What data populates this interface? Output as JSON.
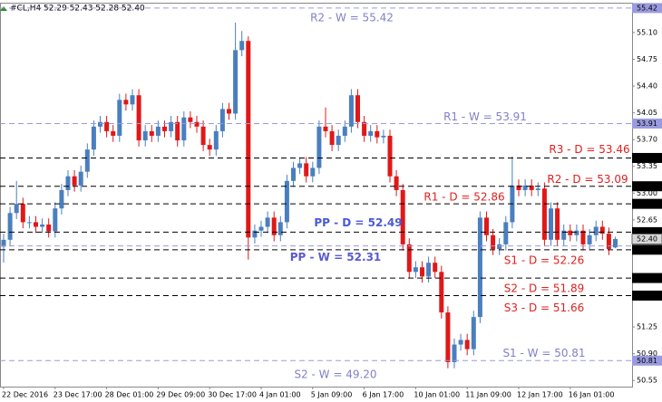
{
  "chart_data": {
    "type": "candlestick",
    "header": "#CL,H4  52.29 52.43 52.28 52.40",
    "up_color": "#4a7fbf",
    "down_color": "#e01818",
    "ylim": [
      50.47,
      55.49
    ],
    "yticks": [
      50.55,
      {
        "value": 50.9,
        "label": "50.90"
      },
      51.25,
      52.65,
      {
        "value": 53,
        "label": "53.00"
      },
      53.35,
      {
        "value": 53.7,
        "label": "53.70"
      },
      54.05,
      {
        "value": 54.4,
        "label": "54.40"
      },
      54.75,
      {
        "value": 55.1,
        "label": "55.10"
      }
    ],
    "last_price": {
      "value": 52.4,
      "label": "52.40"
    },
    "x": [
      "22 Dec 2016",
      null,
      null,
      null,
      null,
      null,
      null,
      null,
      "23 Dec 17:00",
      null,
      null,
      null,
      null,
      null,
      null,
      null,
      "28 Dec 01:00",
      null,
      null,
      null,
      null,
      null,
      null,
      null,
      "29 Dec 09:00",
      null,
      null,
      null,
      null,
      null,
      null,
      null,
      "30 Dec 17:00",
      null,
      null,
      null,
      null,
      null,
      null,
      null,
      "4 Jan 01:00",
      null,
      null,
      null,
      null,
      null,
      null,
      null,
      "5 Jan 09:00",
      null,
      null,
      null,
      null,
      null,
      null,
      null,
      "6 Jan 17:00",
      null,
      null,
      null,
      null,
      null,
      null,
      null,
      "10 Jan 01:00",
      null,
      null,
      null,
      null,
      null,
      null,
      null,
      "11 Jan 09:00",
      null,
      null,
      null,
      null,
      null,
      null,
      null,
      "12 Jan 17:00",
      null,
      null,
      null,
      null,
      null,
      null,
      null,
      "16 Jan 01:00",
      null,
      null,
      null,
      null,
      null,
      null,
      null
    ],
    "open": [
      52.3,
      52.39,
      52.74,
      52.86,
      52.62,
      52.62,
      52.56,
      52.59,
      52.5,
      52.8,
      53.04,
      53.22,
      53.1,
      53.28,
      53.57,
      53.87,
      53.93,
      53.81,
      53.75,
      54.22,
      54.16,
      54.28,
      53.69,
      53.81,
      53.75,
      53.87,
      53.81,
      53.93,
      53.69,
      53.99,
      53.93,
      53.87,
      53.63,
      53.57,
      53.81,
      54.1,
      54.04,
      54.87,
      54.99,
      52.42,
      52.51,
      52.56,
      52.68,
      52.45,
      52.62,
      53.16,
      53.33,
      53.39,
      53.22,
      53.33,
      53.87,
      53.81,
      53.63,
      53.75,
      53.87,
      54.28,
      53.93,
      53.75,
      53.81,
      53.73,
      53.75,
      53.22,
      53.04,
      52.33,
      51.97,
      52.03,
      51.91,
      52.09,
      51.97,
      51.44,
      50.79,
      51.02,
      51.08,
      50.96,
      51.38,
      52.68,
      52.45,
      52.27,
      52.33,
      52.62,
      53.1,
      53.04,
      53.1,
      53.04,
      53.06,
      52.39,
      52.8,
      52.39,
      52.51,
      52.45,
      52.51,
      52.33,
      52.45,
      52.56,
      52.47,
      52.29
    ],
    "high": [
      52.47,
      52.82,
      53.16,
      52.94,
      52.7,
      52.7,
      52.67,
      52.67,
      52.88,
      53.12,
      53.3,
      53.3,
      53.36,
      53.65,
      53.95,
      54.01,
      54.01,
      53.89,
      54.3,
      54.3,
      54.36,
      54.36,
      53.89,
      53.89,
      53.95,
      53.95,
      54.01,
      54.01,
      54.07,
      54.07,
      54.01,
      53.95,
      53.71,
      53.89,
      54.18,
      54.18,
      55.23,
      55.12,
      55.05,
      52.59,
      52.64,
      52.76,
      52.76,
      52.7,
      53.24,
      53.41,
      53.47,
      53.47,
      53.41,
      53.95,
      54.12,
      53.89,
      53.83,
      53.95,
      54.36,
      54.36,
      54.01,
      53.89,
      53.89,
      53.83,
      53.83,
      53.3,
      53.12,
      52.41,
      52.11,
      52.11,
      52.17,
      52.17,
      52.05,
      51.52,
      51.1,
      51.16,
      51.16,
      51.46,
      52.76,
      52.76,
      52.53,
      52.41,
      52.7,
      53.48,
      53.18,
      53.18,
      53.18,
      53.14,
      53.14,
      52.88,
      52.88,
      52.59,
      52.59,
      52.59,
      52.59,
      52.53,
      52.64,
      52.64,
      52.55,
      52.43
    ],
    "low": [
      52.09,
      52.31,
      52.66,
      52.54,
      52.54,
      52.48,
      52.48,
      52.42,
      52.42,
      52.72,
      52.96,
      53.02,
      53.02,
      53.2,
      53.49,
      53.79,
      53.73,
      53.67,
      53.67,
      54.08,
      54.08,
      53.61,
      53.61,
      53.67,
      53.67,
      53.73,
      53.73,
      53.61,
      53.61,
      53.85,
      53.79,
      53.55,
      53.49,
      53.49,
      53.73,
      53.96,
      53.96,
      54.79,
      52.13,
      52.34,
      52.43,
      52.48,
      52.37,
      52.37,
      52.54,
      53.08,
      53.25,
      53.14,
      53.14,
      53.25,
      53.73,
      53.55,
      53.55,
      53.67,
      53.79,
      53.85,
      53.67,
      53.67,
      53.65,
      53.65,
      53.14,
      52.96,
      52.25,
      51.89,
      51.89,
      51.83,
      51.83,
      51.89,
      51.36,
      50.71,
      50.71,
      50.94,
      50.88,
      50.88,
      51.3,
      52.37,
      52.19,
      52.19,
      52.25,
      52.54,
      52.96,
      52.96,
      52.96,
      52.96,
      52.31,
      52.31,
      52.31,
      52.31,
      52.37,
      52.37,
      52.25,
      52.25,
      52.37,
      52.39,
      52.19,
      52.28
    ],
    "close": [
      52.39,
      52.74,
      52.86,
      52.62,
      52.62,
      52.56,
      52.59,
      52.5,
      52.8,
      53.04,
      53.22,
      53.1,
      53.28,
      53.57,
      53.87,
      53.93,
      53.81,
      53.75,
      54.22,
      54.16,
      54.28,
      53.69,
      53.81,
      53.75,
      53.87,
      53.81,
      53.93,
      53.69,
      53.99,
      53.93,
      53.87,
      53.63,
      53.57,
      53.81,
      54.1,
      54.04,
      54.87,
      54.99,
      52.42,
      52.51,
      52.56,
      52.68,
      52.45,
      52.62,
      53.16,
      53.33,
      53.39,
      53.22,
      53.33,
      53.87,
      53.81,
      53.63,
      53.75,
      53.87,
      54.28,
      53.93,
      53.75,
      53.81,
      53.73,
      53.75,
      53.22,
      53.04,
      52.33,
      51.97,
      52.03,
      51.91,
      52.09,
      51.97,
      51.44,
      50.79,
      51.02,
      51.08,
      50.96,
      51.38,
      52.68,
      52.45,
      52.27,
      52.33,
      52.62,
      53.1,
      53.04,
      53.1,
      53.04,
      53.06,
      52.39,
      52.8,
      52.39,
      52.51,
      52.45,
      52.51,
      52.33,
      52.45,
      52.56,
      52.47,
      52.27,
      52.4
    ],
    "levels": [
      {
        "label": "R2 - W = 55.42",
        "value": 55.42,
        "line_color": "#9a9ae0",
        "text_color": "#8080c8",
        "bold": false,
        "axis_label": true
      },
      {
        "label": "R1 - W = 53.91",
        "value": 53.91,
        "line_color": "#9a9ae0",
        "text_color": "#8080c8",
        "bold": false,
        "axis_label": true
      },
      {
        "label": "PP - W = 52.31",
        "value": 52.31,
        "line_color": "#9a9ae0",
        "text_color": "#5a5ad0",
        "bold": true,
        "axis_label": false
      },
      {
        "label": "S1 - W = 50.81",
        "value": 50.81,
        "line_color": "#9a9ae0",
        "text_color": "#8080c8",
        "bold": false,
        "axis_label": true
      },
      {
        "label": "S2 - W = 49.20",
        "value": 49.2,
        "line_color": "#9a9ae0",
        "text_color": "#8080c8",
        "bold": false,
        "axis_label": false
      },
      {
        "label": "R3 - D = 53.46",
        "value": 53.46,
        "line_color": "#000000",
        "text_color": "#e02020",
        "bold": false,
        "axis_label": true
      },
      {
        "label": "R2 - D = 53.09",
        "value": 53.09,
        "line_color": "#000000",
        "text_color": "#e02020",
        "bold": false,
        "axis_label": true
      },
      {
        "label": "R1 - D = 52.86",
        "value": 52.86,
        "line_color": "#000000",
        "text_color": "#e02020",
        "bold": false,
        "axis_label": true
      },
      {
        "label": "PP - D = 52.49",
        "value": 52.49,
        "line_color": "#000000",
        "text_color": "#4a5ad8",
        "bold": true,
        "axis_label": true
      },
      {
        "label": "S1 - D = 52.26",
        "value": 52.26,
        "line_color": "#000000",
        "text_color": "#e02020",
        "bold": false,
        "axis_label": true
      },
      {
        "label": "S2 - D = 51.89",
        "value": 51.89,
        "line_color": "#000000",
        "text_color": "#e02020",
        "bold": false,
        "axis_label": true
      },
      {
        "label": "S3 - D = 51.66",
        "value": 51.66,
        "line_color": "#000000",
        "text_color": "#e02020",
        "bold": false,
        "axis_label": true
      }
    ]
  }
}
